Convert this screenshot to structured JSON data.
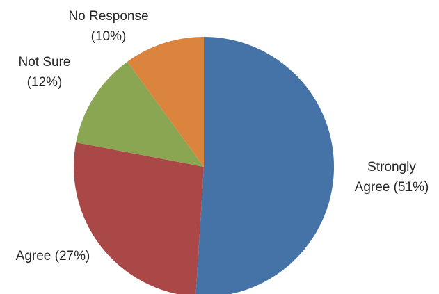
{
  "chart_data": {
    "type": "pie",
    "title": "",
    "start_angle_deg": 0,
    "direction": "clockwise",
    "slices": [
      {
        "category": "Strongly Agree",
        "value": 51,
        "label_lines": [
          "Strongly",
          "Agree (51%)"
        ],
        "color": "#4673A7"
      },
      {
        "category": "Agree",
        "value": 27,
        "label_lines": [
          "Agree (27%)"
        ],
        "color": "#A94846"
      },
      {
        "category": "Not Sure",
        "value": 12,
        "label_lines": [
          "Not Sure",
          "(12%)"
        ],
        "color": "#8BA652"
      },
      {
        "category": "No Response",
        "value": 10,
        "label_lines": [
          "No Response",
          "(10%)"
        ],
        "color": "#DB843D"
      }
    ]
  }
}
